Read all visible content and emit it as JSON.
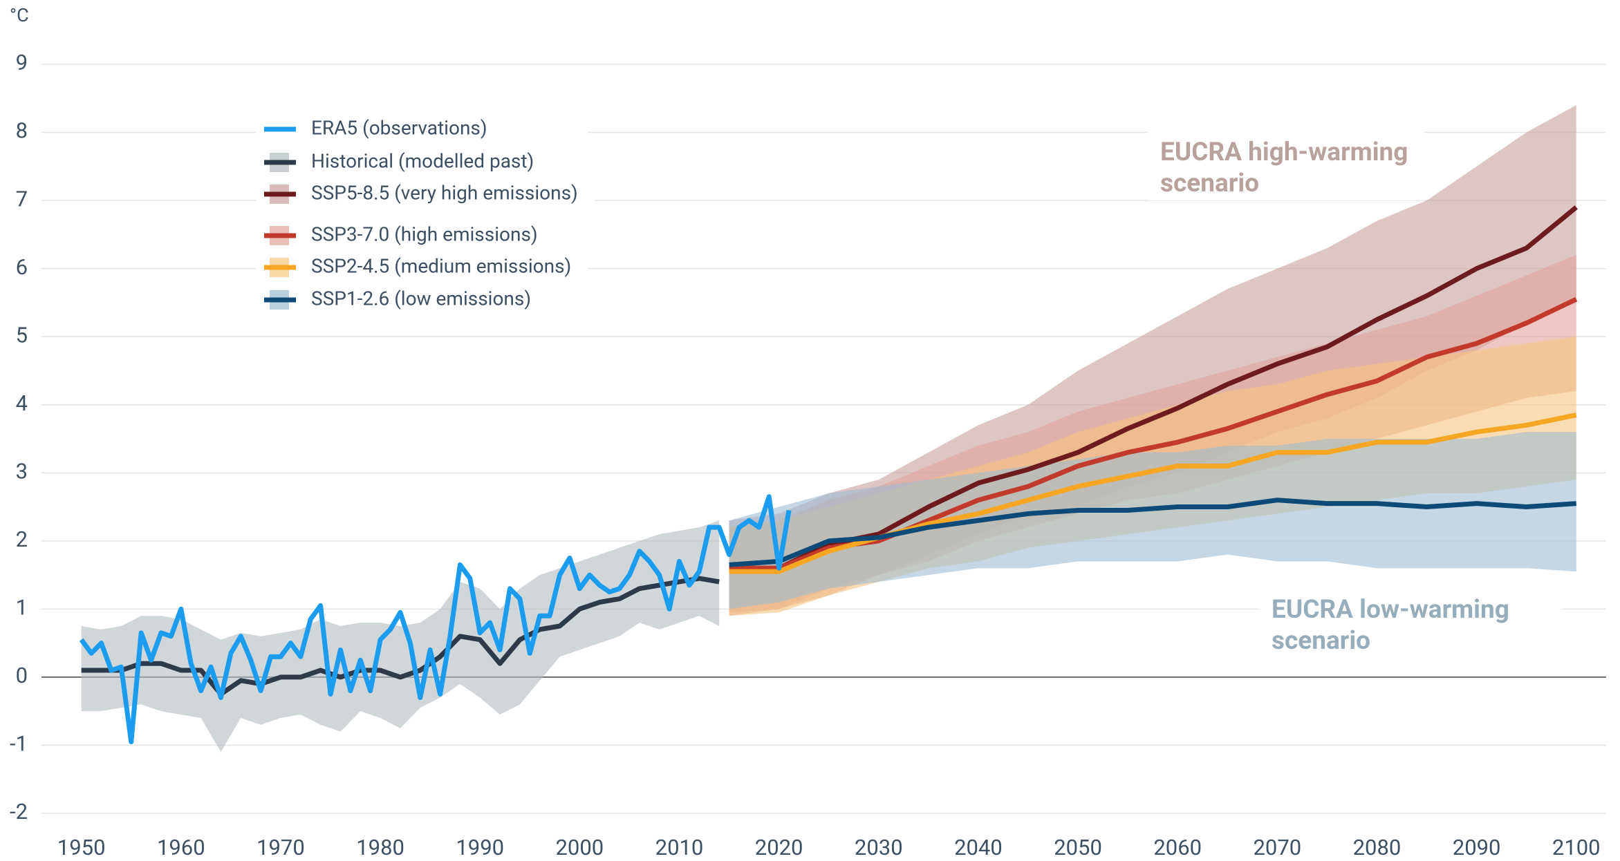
{
  "chart_data": {
    "type": "line",
    "y_label": "°C",
    "xlim": [
      1946,
      2103
    ],
    "ylim": [
      -2,
      9
    ],
    "xticks": [
      1950,
      1960,
      1970,
      1980,
      1990,
      2000,
      2010,
      2020,
      2030,
      2040,
      2050,
      2060,
      2070,
      2080,
      2090,
      2100
    ],
    "yticks": [
      -2,
      -1,
      0,
      1,
      2,
      3,
      4,
      5,
      6,
      7,
      8,
      9
    ],
    "grid": true,
    "legend": "top-left",
    "annotations": [
      {
        "lines": [
          "EUCRA high-warming",
          "scenario"
        ],
        "color": "#b9a19e"
      },
      {
        "lines": [
          "EUCRA low-warming",
          "scenario"
        ],
        "color": "#98adbb"
      }
    ],
    "series": [
      {
        "name": "ERA5 (observations)",
        "color": "#1b9cee",
        "x": [
          1950,
          1951,
          1952,
          1953,
          1954,
          1955,
          1956,
          1957,
          1958,
          1959,
          1960,
          1961,
          1962,
          1963,
          1964,
          1965,
          1966,
          1967,
          1968,
          1969,
          1970,
          1971,
          1972,
          1973,
          1974,
          1975,
          1976,
          1977,
          1978,
          1979,
          1980,
          1981,
          1982,
          1983,
          1984,
          1985,
          1986,
          1987,
          1988,
          1989,
          1990,
          1991,
          1992,
          1993,
          1994,
          1995,
          1996,
          1997,
          1998,
          1999,
          2000,
          2001,
          2002,
          2003,
          2004,
          2005,
          2006,
          2007,
          2008,
          2009,
          2010,
          2011,
          2012,
          2013,
          2014,
          2015,
          2016,
          2017,
          2018,
          2019,
          2020,
          2021
        ],
        "values": [
          0.55,
          0.35,
          0.5,
          0.1,
          0.15,
          -0.95,
          0.65,
          0.25,
          0.65,
          0.6,
          1.0,
          0.2,
          -0.2,
          0.15,
          -0.3,
          0.35,
          0.6,
          0.25,
          -0.2,
          0.3,
          0.3,
          0.5,
          0.3,
          0.85,
          1.05,
          -0.25,
          0.4,
          -0.2,
          0.25,
          -0.2,
          0.55,
          0.7,
          0.95,
          0.5,
          -0.3,
          0.4,
          -0.25,
          0.6,
          1.65,
          1.45,
          0.65,
          0.8,
          0.4,
          1.3,
          1.15,
          0.35,
          0.9,
          0.9,
          1.5,
          1.75,
          1.3,
          1.5,
          1.35,
          1.25,
          1.3,
          1.5,
          1.85,
          1.7,
          1.5,
          1.0,
          1.7,
          1.35,
          1.55,
          2.2,
          2.2,
          1.8,
          2.2,
          2.3,
          2.2,
          2.65,
          1.6,
          2.45
        ]
      },
      {
        "name": "Historical (modelled past)",
        "color": "#2c3a4a",
        "band_color": "#b3babf",
        "x": [
          1950,
          1952,
          1954,
          1956,
          1958,
          1960,
          1962,
          1964,
          1966,
          1968,
          1970,
          1972,
          1974,
          1976,
          1978,
          1980,
          1982,
          1984,
          1986,
          1988,
          1990,
          1992,
          1994,
          1996,
          1998,
          2000,
          2002,
          2004,
          2006,
          2008,
          2010,
          2012,
          2014
        ],
        "values": [
          0.1,
          0.1,
          0.1,
          0.2,
          0.2,
          0.1,
          0.1,
          -0.25,
          -0.05,
          -0.1,
          0.0,
          0.0,
          0.1,
          0.0,
          0.1,
          0.1,
          0.0,
          0.1,
          0.3,
          0.6,
          0.55,
          0.2,
          0.55,
          0.7,
          0.75,
          1.0,
          1.1,
          1.15,
          1.3,
          1.35,
          1.4,
          1.45,
          1.4
        ],
        "lower": [
          -0.5,
          -0.5,
          -0.45,
          -0.4,
          -0.5,
          -0.55,
          -0.6,
          -1.1,
          -0.6,
          -0.7,
          -0.6,
          -0.55,
          -0.7,
          -0.8,
          -0.5,
          -0.6,
          -0.75,
          -0.45,
          -0.3,
          -0.1,
          -0.3,
          -0.55,
          -0.4,
          -0.05,
          0.3,
          0.4,
          0.5,
          0.6,
          0.8,
          0.7,
          0.8,
          0.9,
          0.75
        ],
        "upper": [
          0.75,
          0.7,
          0.75,
          0.9,
          0.9,
          0.85,
          0.7,
          0.55,
          0.65,
          0.6,
          0.65,
          0.7,
          0.85,
          0.75,
          0.8,
          0.8,
          0.75,
          0.8,
          1.0,
          1.4,
          1.3,
          1.0,
          1.3,
          1.5,
          1.6,
          1.7,
          1.8,
          1.9,
          2.0,
          2.1,
          2.15,
          2.2,
          2.3
        ]
      },
      {
        "name": "SSP5-8.5 (very high emissions)",
        "color": "#6e1b1e",
        "band_color": "#c7a09d",
        "x": [
          2015,
          2020,
          2025,
          2030,
          2035,
          2040,
          2045,
          2050,
          2055,
          2060,
          2065,
          2070,
          2075,
          2080,
          2085,
          2090,
          2095,
          2100
        ],
        "values": [
          1.6,
          1.6,
          1.95,
          2.1,
          2.5,
          2.85,
          3.05,
          3.3,
          3.65,
          3.95,
          4.3,
          4.6,
          4.85,
          5.25,
          5.6,
          6.0,
          6.3,
          6.9
        ],
        "lower": [
          0.95,
          1.0,
          1.3,
          1.5,
          1.8,
          2.1,
          2.4,
          2.5,
          2.8,
          3.0,
          3.3,
          3.6,
          3.8,
          4.1,
          4.5,
          4.8,
          5.2,
          5.5
        ],
        "upper": [
          2.3,
          2.4,
          2.7,
          2.9,
          3.3,
          3.7,
          4.0,
          4.5,
          4.9,
          5.3,
          5.7,
          6.0,
          6.3,
          6.7,
          7.0,
          7.5,
          8.0,
          8.4
        ]
      },
      {
        "name": "SSP3-7.0 (high emissions)",
        "color": "#c23a2c",
        "band_color": "#e3a29a",
        "x": [
          2015,
          2020,
          2025,
          2030,
          2035,
          2040,
          2045,
          2050,
          2055,
          2060,
          2065,
          2070,
          2075,
          2080,
          2085,
          2090,
          2095,
          2100
        ],
        "values": [
          1.6,
          1.6,
          1.9,
          2.0,
          2.3,
          2.6,
          2.8,
          3.1,
          3.3,
          3.45,
          3.65,
          3.9,
          4.15,
          4.35,
          4.7,
          4.9,
          5.2,
          5.55
        ],
        "lower": [
          0.9,
          1.0,
          1.2,
          1.5,
          1.7,
          2.0,
          2.2,
          2.4,
          2.6,
          2.7,
          2.9,
          3.1,
          3.3,
          3.5,
          3.7,
          3.9,
          4.1,
          4.2
        ],
        "upper": [
          2.2,
          2.3,
          2.6,
          2.8,
          3.1,
          3.4,
          3.6,
          3.9,
          4.1,
          4.3,
          4.5,
          4.7,
          4.9,
          5.1,
          5.3,
          5.6,
          5.9,
          6.2
        ]
      },
      {
        "name": "SSP2-4.5 (medium emissions)",
        "color": "#f5a623",
        "band_color": "#f6c57e",
        "x": [
          2015,
          2020,
          2025,
          2030,
          2035,
          2040,
          2045,
          2050,
          2055,
          2060,
          2065,
          2070,
          2075,
          2080,
          2085,
          2090,
          2095,
          2100
        ],
        "values": [
          1.55,
          1.55,
          1.85,
          2.05,
          2.25,
          2.4,
          2.6,
          2.8,
          2.95,
          3.1,
          3.1,
          3.3,
          3.3,
          3.45,
          3.45,
          3.6,
          3.7,
          3.85
        ],
        "lower": [
          0.9,
          0.95,
          1.2,
          1.4,
          1.6,
          1.7,
          1.9,
          2.0,
          2.1,
          2.2,
          2.3,
          2.4,
          2.5,
          2.6,
          2.7,
          2.7,
          2.8,
          2.9
        ],
        "upper": [
          2.2,
          2.3,
          2.5,
          2.7,
          2.9,
          3.1,
          3.3,
          3.6,
          3.8,
          4.0,
          4.2,
          4.3,
          4.5,
          4.6,
          4.7,
          4.8,
          4.9,
          5.0
        ]
      },
      {
        "name": "SSP1-2.6 (low emissions)",
        "color": "#0d4a78",
        "band_color": "#9ebcd2",
        "x": [
          2015,
          2020,
          2025,
          2030,
          2035,
          2040,
          2045,
          2050,
          2055,
          2060,
          2065,
          2070,
          2075,
          2080,
          2085,
          2090,
          2095,
          2100
        ],
        "values": [
          1.65,
          1.7,
          2.0,
          2.05,
          2.2,
          2.3,
          2.4,
          2.45,
          2.45,
          2.5,
          2.5,
          2.6,
          2.55,
          2.55,
          2.5,
          2.55,
          2.5,
          2.55
        ],
        "lower": [
          1.0,
          1.1,
          1.3,
          1.4,
          1.5,
          1.6,
          1.6,
          1.7,
          1.7,
          1.7,
          1.8,
          1.7,
          1.7,
          1.6,
          1.6,
          1.6,
          1.6,
          1.55
        ],
        "upper": [
          2.3,
          2.5,
          2.7,
          2.8,
          2.9,
          3.0,
          3.1,
          3.2,
          3.3,
          3.3,
          3.4,
          3.4,
          3.5,
          3.5,
          3.5,
          3.5,
          3.6,
          3.6
        ]
      }
    ]
  }
}
